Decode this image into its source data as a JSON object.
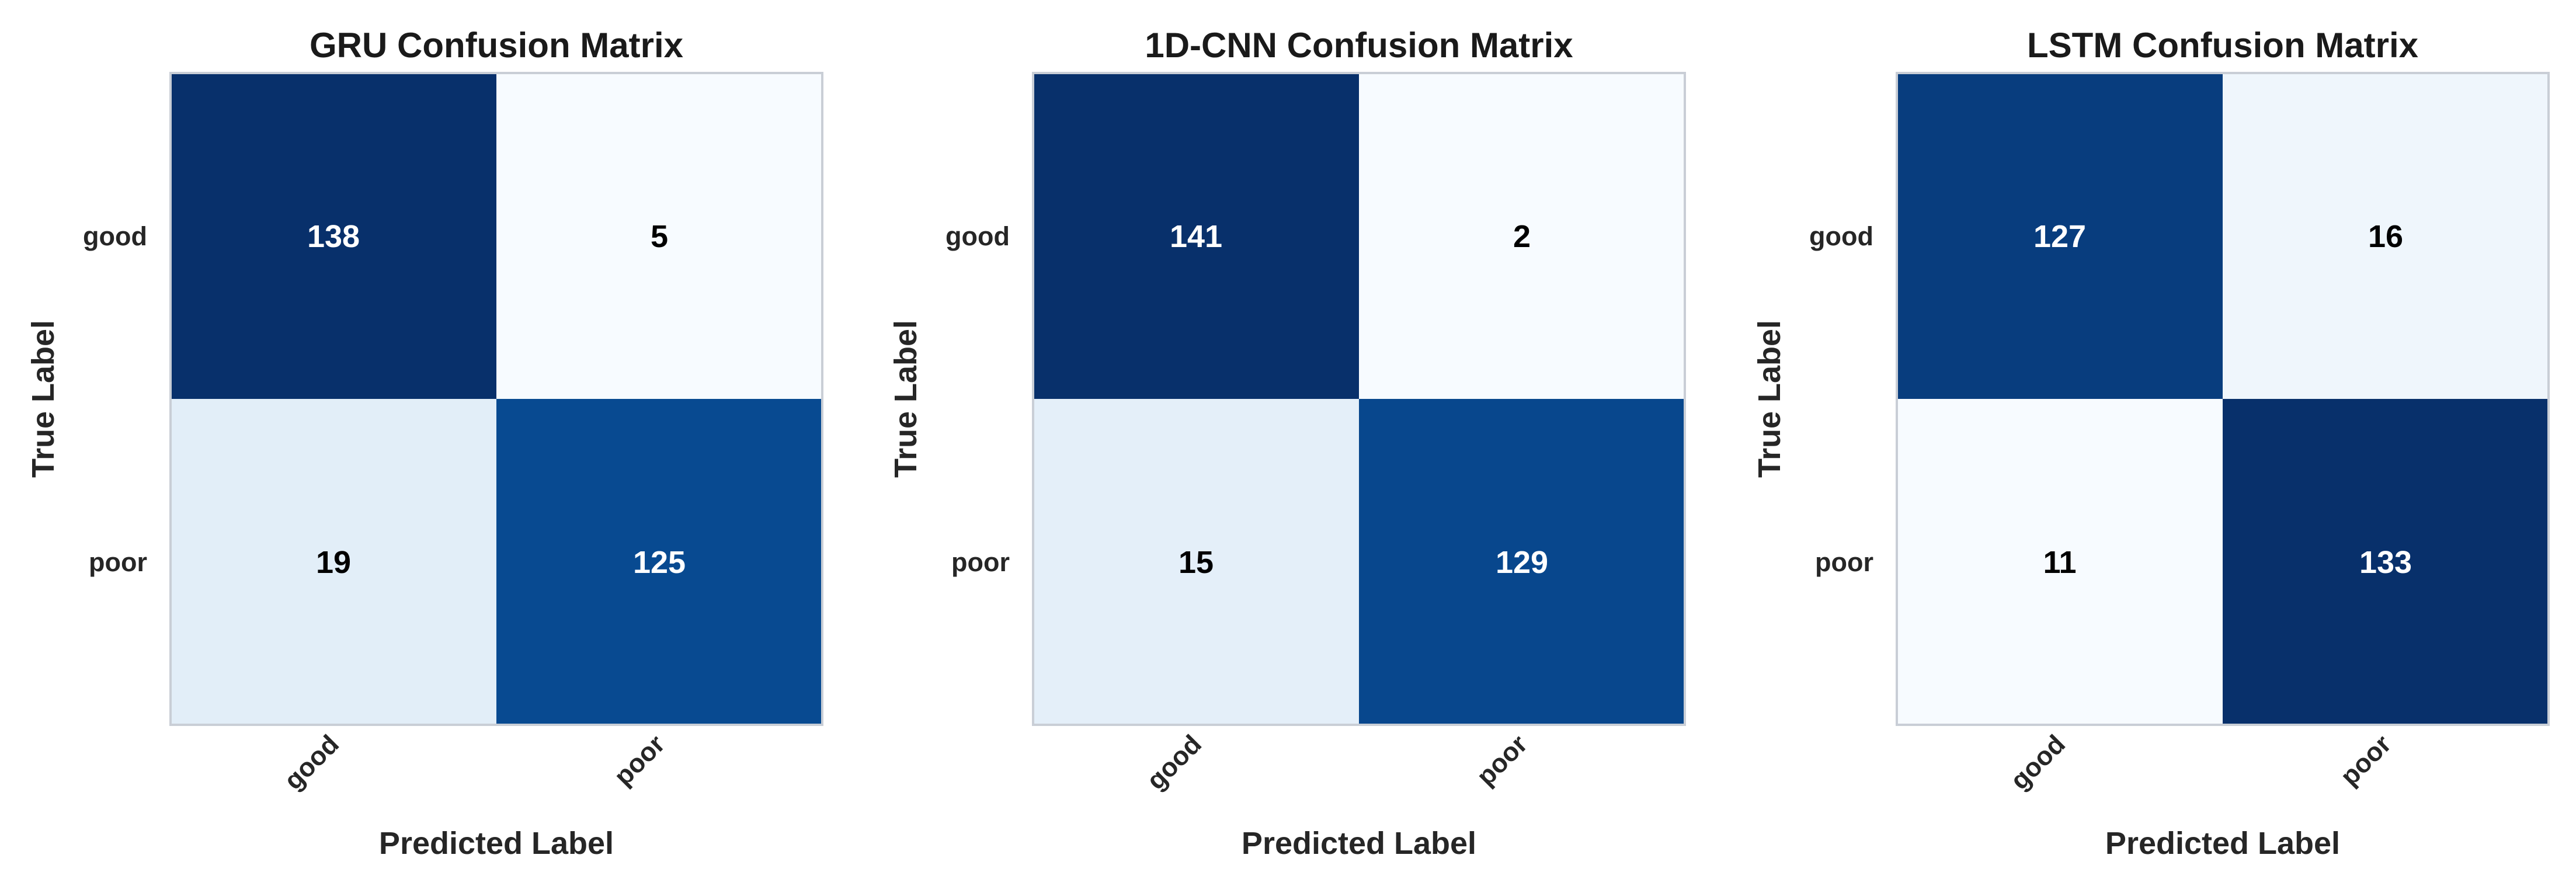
{
  "colormap": {
    "low": "#f7fbff",
    "high": "#08306b",
    "text_dark": "#000000",
    "text_light": "#ffffff"
  },
  "chart_data": [
    {
      "type": "heatmap",
      "title": "GRU Confusion Matrix",
      "xlabel": "Predicted Label",
      "ylabel": "True Label",
      "x_categories": [
        "good",
        "poor"
      ],
      "y_categories": [
        "good",
        "poor"
      ],
      "values": [
        [
          138,
          5
        ],
        [
          19,
          125
        ]
      ],
      "grid": false,
      "legend": "none"
    },
    {
      "type": "heatmap",
      "title": "1D-CNN Confusion Matrix",
      "xlabel": "Predicted Label",
      "ylabel": "True Label",
      "x_categories": [
        "good",
        "poor"
      ],
      "y_categories": [
        "good",
        "poor"
      ],
      "values": [
        [
          141,
          2
        ],
        [
          15,
          129
        ]
      ],
      "grid": false,
      "legend": "none"
    },
    {
      "type": "heatmap",
      "title": "LSTM Confusion Matrix",
      "xlabel": "Predicted Label",
      "ylabel": "True Label",
      "x_categories": [
        "good",
        "poor"
      ],
      "y_categories": [
        "good",
        "poor"
      ],
      "values": [
        [
          127,
          16
        ],
        [
          11,
          133
        ]
      ],
      "grid": false,
      "legend": "none"
    }
  ]
}
